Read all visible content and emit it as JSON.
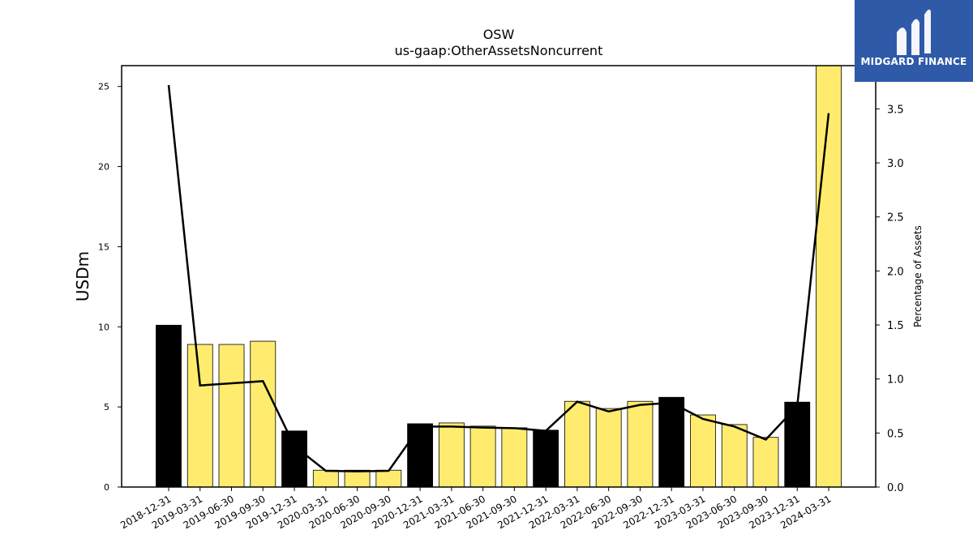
{
  "brand": {
    "name": "MIDGARD FINANCE",
    "bg_color": "#2f5aa8"
  },
  "chart_data": {
    "type": "bar",
    "title": "OSW",
    "subtitle": "us-gaap:OtherAssetsNoncurrent",
    "ylabel": "USDm",
    "ylabel_right": "Percentage of Assets",
    "ylim": [
      0,
      26.3
    ],
    "ylim_right": [
      0,
      3.9
    ],
    "yticks": [
      0,
      5,
      10,
      15,
      20,
      25
    ],
    "yticks_right": [
      "0.0",
      "0.5",
      "1.0",
      "1.5",
      "2.0",
      "2.5",
      "3.0",
      "3.5"
    ],
    "categories": [
      "2018-12-31",
      "2019-03-31",
      "2019-06-30",
      "2019-09-30",
      "2019-12-31",
      "2020-03-31",
      "2020-06-30",
      "2020-09-30",
      "2020-12-31",
      "2021-03-31",
      "2021-06-30",
      "2021-09-30",
      "2021-12-31",
      "2022-03-31",
      "2022-06-30",
      "2022-09-30",
      "2022-12-31",
      "2023-03-31",
      "2023-06-30",
      "2023-09-30",
      "2023-12-31",
      "2024-03-31"
    ],
    "series": [
      {
        "type": "bar",
        "values": [
          10.1,
          8.9,
          8.9,
          9.1,
          3.5,
          1.05,
          1.05,
          1.05,
          3.95,
          4.0,
          3.8,
          3.7,
          3.55,
          5.35,
          4.9,
          5.35,
          5.6,
          4.5,
          3.9,
          3.1,
          5.3,
          26.3
        ],
        "colors": [
          "#000000",
          "#ffec6e",
          "#ffec6e",
          "#ffec6e",
          "#000000",
          "#ffec6e",
          "#ffec6e",
          "#ffec6e",
          "#000000",
          "#ffec6e",
          "#ffec6e",
          "#ffec6e",
          "#000000",
          "#ffec6e",
          "#ffec6e",
          "#ffec6e",
          "#000000",
          "#ffec6e",
          "#ffec6e",
          "#ffec6e",
          "#000000",
          "#ffec6e"
        ]
      },
      {
        "type": "line",
        "axis": "right",
        "color": "#000000",
        "values": [
          3.72,
          0.94,
          0.96,
          0.98,
          0.38,
          0.15,
          0.145,
          0.15,
          0.56,
          0.56,
          0.55,
          0.545,
          0.52,
          0.79,
          0.7,
          0.76,
          0.78,
          0.63,
          0.56,
          0.44,
          0.75,
          3.46
        ]
      }
    ]
  }
}
